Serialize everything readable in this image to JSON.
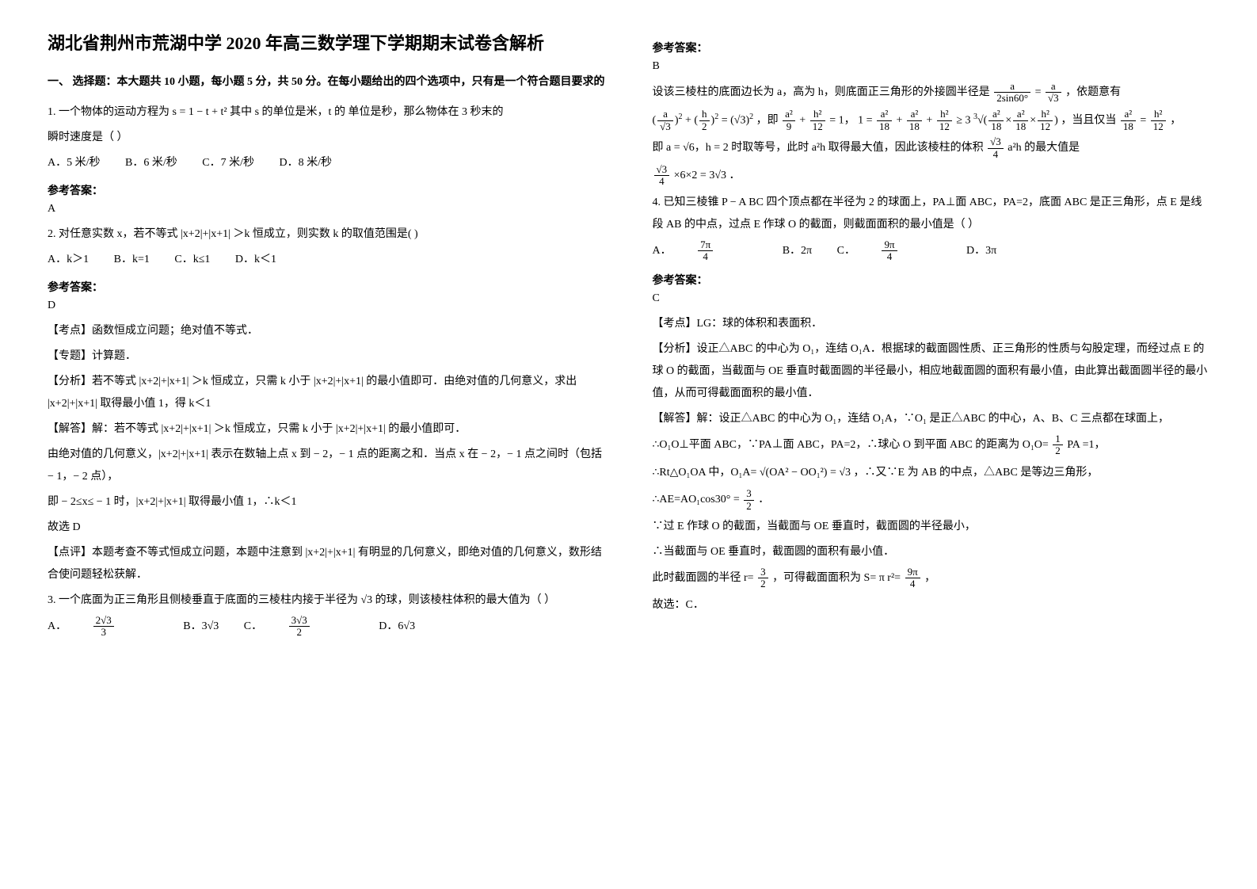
{
  "title": "湖北省荆州市荒湖中学 2020 年高三数学理下学期期末试卷含解析",
  "section1": "一、 选择题：本大题共 10 小题，每小题 5 分，共 50 分。在每小题给出的四个选项中，只有是一个符合题目要求的",
  "q1": {
    "stem1": "1. 一个物体的运动方程为 s = 1 − t + t² 其中 s 的单位是米，t 的 单位是秒，那么物体在 3 秒末的",
    "stem2": "瞬时速度是（        ）",
    "optA": "A．5 米/秒",
    "optB": "B．6 米/秒",
    "optC": "C．7 米/秒",
    "optD": "D．8 米/秒",
    "ansLabel": "参考答案：",
    "ans": "A"
  },
  "q2": {
    "stem": "2. 对任意实数 x，若不等式 |x+2|+|x+1| ＞k 恒成立，则实数 k 的取值范围是(            )",
    "optA": "A．k＞1",
    "optB": "B．k=1",
    "optC": "C．k≤1",
    "optD": "D．k＜1",
    "ansLabel": "参考答案：",
    "ans": "D",
    "p1": "【考点】函数恒成立问题；绝对值不等式．",
    "p2": "【专题】计算题．",
    "p3": "【分析】若不等式 |x+2|+|x+1| ＞k 恒成立，只需 k 小于 |x+2|+|x+1| 的最小值即可．由绝对值的几何意义，求出 |x+2|+|x+1| 取得最小值 1，得 k＜1",
    "p4": "【解答】解：若不等式 |x+2|+|x+1| ＞k 恒成立，只需 k 小于 |x+2|+|x+1| 的最小值即可．",
    "p5": "由绝对值的几何意义，|x+2|+|x+1| 表示在数轴上点 x 到 − 2，− 1 点的距离之和．当点 x 在 − 2，− 1 点之间时（包括 − 1，− 2 点），",
    "p6": "即 − 2≤x≤ − 1 时，|x+2|+|x+1| 取得最小值 1，∴k＜1",
    "p7": "故选 D",
    "p8": "【点评】本题考查不等式恒成立问题，本题中注意到 |x+2|+|x+1| 有明显的几何意义，即绝对值的几何意义，数形结合使问题轻松获解．"
  },
  "q3": {
    "stem": "3. 一个底面为正三角形且侧棱垂直于底面的三棱柱内接于半径为 √3 的球，则该棱柱体积的最大值为（    ）",
    "optA_pre": "A．",
    "optB": "B．3√3",
    "optC_pre": "C．",
    "optD": "D．6√3"
  },
  "right": {
    "ansLabel1": "参考答案：",
    "ans1": "B",
    "r1a": "设该三棱柱的底面边长为 a，高为 h，则底面正三角形的外接圆半径是 ",
    "r1b": "，依题意有",
    "r2b": "，即 ",
    "r2d": "，当且仅当 ",
    "r2e": "，",
    "r3a": "即 a = √6，h = 2 时取等号，此时 a²h 取得最大值，因此该棱柱的体积 ",
    "r3b": " 的最大值是",
    "r4b": "．",
    "q4": {
      "stem": "4. 已知三棱锥 P − A BC 四个顶点都在半径为 2 的球面上，PA⊥面 ABC，PA=2，底面 ABC 是正三角形，点 E 是线段 AB 的中点，过点 E 作球 O 的截面，则截面面积的最小值是（    ）",
      "optA_pre": "A．",
      "optB": "B．2π",
      "optC_pre": "C．",
      "optD": "D．3π",
      "ansLabel": "参考答案：",
      "ans": "C",
      "p1": "【考点】LG：球的体积和表面积．",
      "p2": "【分析】设正△ABC 的中心为 O₁，连结 O₁A．根据球的截面圆性质、正三角形的性质与勾股定理，而经过点 E 的球 O 的截面，当截面与 OE 垂直时截面圆的半径最小，相应地截面圆的面积有最小值，由此算出截面圆半径的最小值，从而可得截面面积的最小值．",
      "p3": "【解答】解：设正△ABC 的中心为 O₁，连结 O₁A，∵O₁ 是正△ABC 的中心，A、B、C 三点都在球面上，",
      "p4a": "∴O₁O⊥平面 ABC，∵PA⊥面 ABC，PA=2，∴球心 O 到平面 ABC 的距离为 O₁O= ",
      "p4b": " =1，",
      "p5a": "∴Rt△O₁OA 中，O₁A= ",
      "p5b": "，∴又∵E 为 AB 的中点，△ABC 是等边三角形，",
      "p6a": "∴AE=AO₁cos30° = ",
      "p6b": "．",
      "p7": "∵过 E 作球 O 的截面，当截面与 OE 垂直时，截面圆的半径最小，",
      "p8": "∴当截面与 OE 垂直时，截面圆的面积有最小值．",
      "p9a": "此时截面圆的半径 r= ",
      "p9b": "，可得截面面积为 S= π r²= ",
      "p9c": "，",
      "p10": "故选：C．"
    }
  }
}
